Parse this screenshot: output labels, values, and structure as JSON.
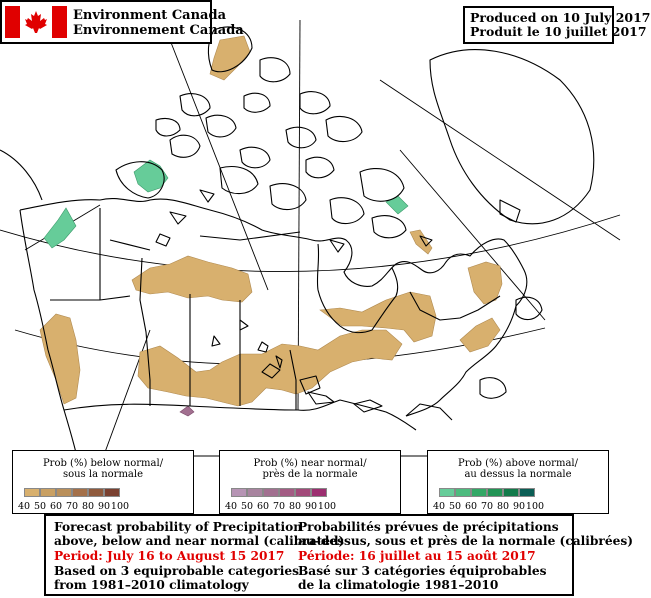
{
  "header": {
    "agency_en": "Environment Canada",
    "agency_fr": "Environnement Canada",
    "produced_en": "Produced on 10 July 2017",
    "produced_fr": "Produit le 10 juillet 2017"
  },
  "legends": [
    {
      "title_line1": "Prob (%) below normal/",
      "title_line2": "sous la normale",
      "colors": [
        "#d8b06e",
        "#c9a063",
        "#b98f5a",
        "#a47049",
        "#8f5a3d",
        "#7a4030"
      ],
      "ticks": [
        "40",
        "50",
        "60",
        "70",
        "80",
        "90",
        "100"
      ]
    },
    {
      "title_line1": "Prob (%) near normal/",
      "title_line2": "près de la normale",
      "colors": [
        "#b694b4",
        "#a8849f",
        "#a27090",
        "#a35c84",
        "#a24a7a",
        "#9c2f70"
      ],
      "ticks": [
        "40",
        "50",
        "60",
        "70",
        "80",
        "90",
        "100"
      ]
    },
    {
      "title_line1": "Prob (%) above normal/",
      "title_line2": "au dessus la normale",
      "colors": [
        "#66cc99",
        "#4dbb7e",
        "#33a866",
        "#229455",
        "#127a4a",
        "#0b5e55"
      ],
      "ticks": [
        "40",
        "50",
        "60",
        "70",
        "80",
        "90",
        "100"
      ]
    }
  ],
  "notes": {
    "en_title1": "Forecast probability of Precipitation",
    "en_title2": "above, below and near normal (calibrated)",
    "en_period": "Period: July 16 to August 15 2017",
    "en_basis1": "Based on 3 equiprobable categories",
    "en_basis2": "from 1981–2010 climatology",
    "fr_title1": "Probabilités prévues de précipitations",
    "fr_title2": "au–dessus, sous et près de la normale (calibrées)",
    "fr_period": "Période: 16 juillet au 15 août 2017",
    "fr_basis1": "Basé sur 3 catégories équiprobables",
    "fr_basis2": "de la climatologie 1981–2010"
  },
  "map": {
    "below_normal_color": "#d8b06e",
    "above_normal_color": "#66cc99",
    "near_normal_color": "#a27090"
  }
}
